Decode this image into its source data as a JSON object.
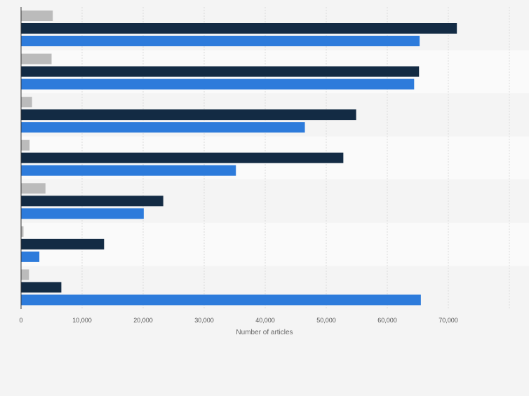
{
  "chart_data": {
    "type": "bar",
    "orientation": "horizontal",
    "grouped": true,
    "categories": [
      "",
      "",
      "",
      "",
      "",
      "",
      ""
    ],
    "series": [
      {
        "color": "#bbbbbb",
        "values": [
          5200,
          5000,
          1800,
          1400,
          4000,
          400,
          1300
        ]
      },
      {
        "color": "#132b44",
        "values": [
          71400,
          65200,
          54900,
          52800,
          23300,
          13600,
          6600
        ]
      },
      {
        "color": "#2d7bdb",
        "values": [
          65300,
          64400,
          46500,
          35200,
          20100,
          3000,
          65500
        ]
      }
    ],
    "xlim": [
      0,
      80000
    ],
    "x_ticks": [
      0,
      10000,
      20000,
      30000,
      40000,
      50000,
      60000,
      70000
    ],
    "x_tick_labels": [
      "0",
      "10,000",
      "20,000",
      "30,000",
      "40,000",
      "50,000",
      "60,000",
      "70,000"
    ],
    "xlabel": "Number of articles",
    "ylabel": "",
    "title": "",
    "grid": true,
    "legend": "none"
  }
}
